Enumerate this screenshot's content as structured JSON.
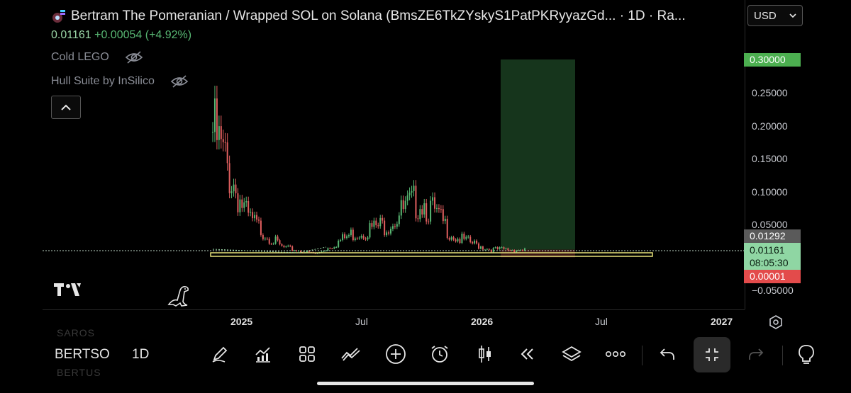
{
  "header": {
    "title": "Bertram The Pomeranian / Wrapped SOL on Solana (BmsZE6TkZYskyS1PatPKRyyazGd... · 1D · Ra...",
    "last_price": "0.01161",
    "change": "+0.00054 (+4.92%)"
  },
  "indicators": [
    {
      "label": "Cold LEGO",
      "icon": "eye-off-icon"
    },
    {
      "label": "Hull Suite by InSilico",
      "icon": "eye-off-icon"
    }
  ],
  "currency": {
    "selected": "USD"
  },
  "price_axis": {
    "ticks": [
      "0.25000",
      "0.20000",
      "0.15000",
      "0.10000",
      "0.05000",
      "−0.05000"
    ],
    "badges": {
      "target": "0.30000",
      "prev": "0.01292",
      "current": "0.01161",
      "countdown": "08:05:30",
      "stop": "0.00001"
    }
  },
  "time_axis": {
    "ticks": [
      "2025",
      "Jul",
      "2026",
      "Jul",
      "2027"
    ]
  },
  "bottom": {
    "symbol": "BERTSO",
    "symbol_above": "SAROS",
    "symbol_below": "BERTUS",
    "interval": "1D"
  },
  "toolbar_icons": [
    "pencil-icon",
    "indicators-icon",
    "grid-icon",
    "compare-icon",
    "plus-circle-icon",
    "alarm-icon",
    "candles-icon",
    "rewind-icon",
    "layers-icon",
    "more-icon",
    "undo-icon",
    "fullscreen-exit-icon",
    "redo-icon"
  ],
  "colors": {
    "up": "#58b773",
    "down": "#e05e5e",
    "target_zone": "#16351c",
    "target_badge": "#4caf50",
    "stop_badge": "#e34b4b",
    "current_badge": "#8fd6a3",
    "support_line": "#e8e37a"
  },
  "chart_data": {
    "type": "candlestick",
    "x": [
      "2024-12",
      "2025-01",
      "2025-03",
      "2025-05",
      "2025-07",
      "2025-08",
      "2025-10",
      "2025-12",
      "2026-02",
      "2026-03"
    ],
    "y": [
      0.19,
      0.06,
      0.015,
      0.005,
      0.035,
      0.05,
      0.09,
      0.03,
      0.012,
      0.01161
    ],
    "ylim": [
      -0.05,
      0.3
    ],
    "long_position": {
      "entry": 0.01161,
      "target": 0.3,
      "stop": 1e-05
    }
  }
}
